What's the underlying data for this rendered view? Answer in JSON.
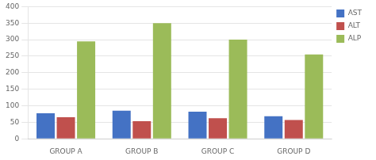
{
  "chart_data": {
    "type": "bar",
    "categories": [
      "GROUP A",
      "GROUP B",
      "GROUP C",
      "GROUP D"
    ],
    "series": [
      {
        "name": "AST",
        "color": "#4472C4",
        "values": [
          77,
          85,
          82,
          68
        ]
      },
      {
        "name": "ALT",
        "color": "#C0504D",
        "values": [
          65,
          53,
          62,
          57
        ]
      },
      {
        "name": "ALP",
        "color": "#9BBB59",
        "values": [
          295,
          350,
          300,
          255
        ]
      }
    ],
    "ylim": [
      0,
      400
    ],
    "yticks": [
      0,
      50,
      100,
      150,
      200,
      250,
      300,
      350,
      400
    ],
    "grid": true,
    "legend": "upper right"
  }
}
